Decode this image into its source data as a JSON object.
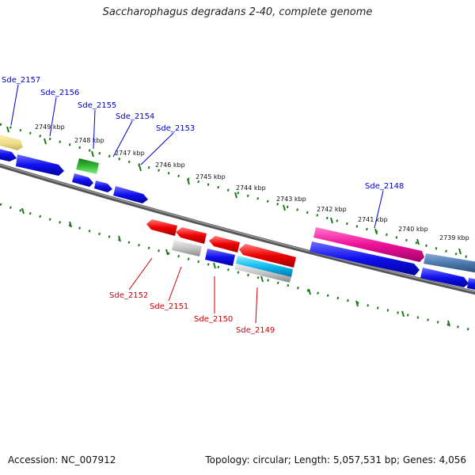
{
  "title": "Saccharophagus degradans 2-40, complete genome",
  "footer": {
    "accession": "Accession: NC_007912",
    "info": "Topology: circular; Length: 5,057,531 bp; Genes: 4,056"
  },
  "kbp_labels": [
    "2749 kbp",
    "2748 kbp",
    "2747 kbp",
    "2746 kbp",
    "2745 kbp",
    "2744 kbp",
    "2743 kbp",
    "2742 kbp",
    "2741 kbp",
    "2740 kbp",
    "2739 kbp"
  ],
  "genes": {
    "top": [
      "Sde_2157",
      "Sde_2156",
      "Sde_2155",
      "Sde_2154",
      "Sde_2153",
      "Sde_2148"
    ],
    "bottom": [
      "Sde_2152",
      "Sde_2151",
      "Sde_2150",
      "Sde_2149"
    ]
  },
  "colors": {
    "forward_label": "#0000cc",
    "reverse_label": "#cc0000",
    "tick": "#1a7a1a",
    "backbone": "#777777"
  }
}
